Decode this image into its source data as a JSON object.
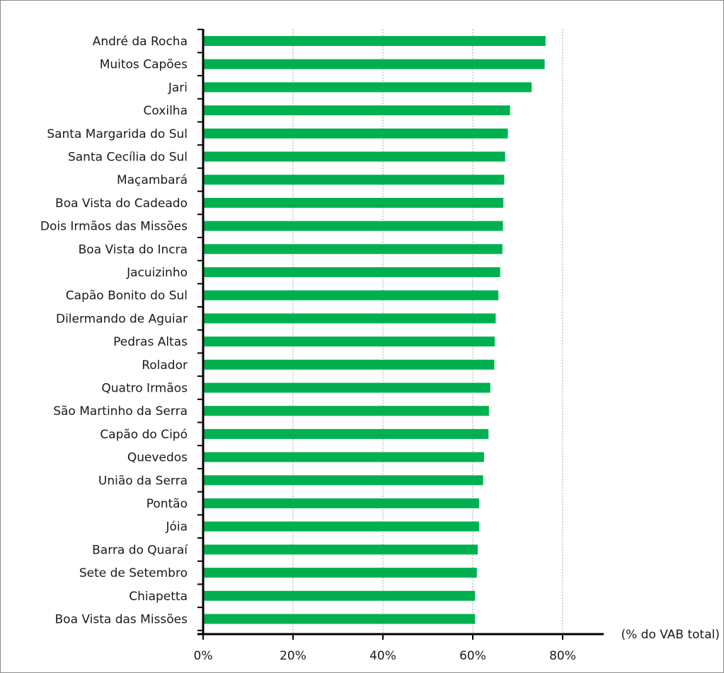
{
  "chart_data": {
    "type": "bar",
    "orientation": "horizontal",
    "title": "",
    "xlabel": "(% do VAB total)",
    "ylabel": "",
    "xlim": [
      0,
      80
    ],
    "x_ticks": [
      0,
      20,
      40,
      60,
      80
    ],
    "x_tick_labels": [
      "0%",
      "20%",
      "40%",
      "60%",
      "80%"
    ],
    "grid": "vertical dotted",
    "bar_color": "#00b050",
    "categories": [
      "André da Rocha",
      "Muitos Capões",
      "Jari",
      "Coxilha",
      "Santa Margarida do Sul",
      "Santa Cecília do Sul",
      "Maçambará",
      "Boa Vista do Cadeado",
      "Dois Irmãos das Missões",
      "Boa Vista do Incra",
      "Jacuizinho",
      "Capão Bonito do Sul",
      "Dilermando de Aguiar",
      "Pedras Altas",
      "Rolador",
      "Quatro Irmãos",
      "São Martinho da Serra",
      "Capão do Cipó",
      "Quevedos",
      "União da Serra",
      "Pontão",
      "Jóia",
      "Barra do Quaraí",
      "Sete de Setembro",
      "Chiapetta",
      "Boa Vista das Missões"
    ],
    "values": [
      76.2,
      76.0,
      73.1,
      68.3,
      67.8,
      67.2,
      67.0,
      66.8,
      66.7,
      66.6,
      66.1,
      65.7,
      65.1,
      64.9,
      64.8,
      63.9,
      63.6,
      63.5,
      62.5,
      62.3,
      61.4,
      61.4,
      61.1,
      60.9,
      60.5,
      60.5
    ]
  }
}
